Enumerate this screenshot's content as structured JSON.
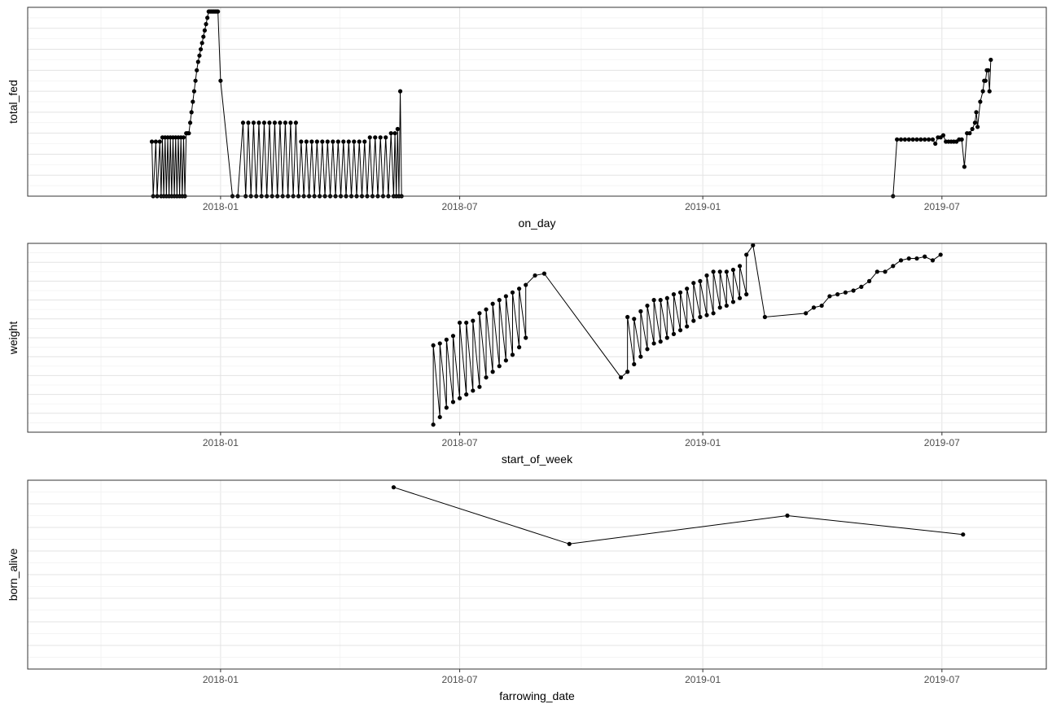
{
  "chart_data": [
    {
      "type": "line",
      "xlabel": "on_day",
      "ylabel": "total_fed",
      "x_ticks": [
        "2018-01-01",
        "2018-07-01",
        "2019-01-01",
        "2019-07-01"
      ],
      "x_tick_labels": [
        "2018-01",
        "2018-07",
        "2019-01",
        "2019-07"
      ],
      "xlim": [
        "2017-08-08",
        "2019-09-18"
      ],
      "ylim": [
        0,
        9
      ],
      "y_tick_labels": [],
      "grid": true,
      "series": [
        {
          "x": [
            "2017-11-10",
            "2017-11-11",
            "2017-11-13",
            "2017-11-14",
            "2017-11-16",
            "2017-11-17",
            "2017-11-18",
            "2017-11-19",
            "2017-11-20",
            "2017-11-21",
            "2017-11-22",
            "2017-11-23",
            "2017-11-24",
            "2017-11-25",
            "2017-11-26",
            "2017-11-27",
            "2017-11-28",
            "2017-11-29",
            "2017-11-30",
            "2017-12-01",
            "2017-12-02",
            "2017-12-03",
            "2017-12-04",
            "2017-12-05",
            "2017-12-06",
            "2017-12-07",
            "2017-12-08",
            "2017-12-09",
            "2017-12-10",
            "2017-12-11",
            "2017-12-12",
            "2017-12-13",
            "2017-12-14",
            "2017-12-15",
            "2017-12-16",
            "2017-12-17",
            "2017-12-18",
            "2017-12-19",
            "2017-12-20",
            "2017-12-21",
            "2017-12-22",
            "2017-12-23",
            "2017-12-24",
            "2017-12-25",
            "2017-12-26",
            "2017-12-27",
            "2017-12-28",
            "2017-12-29",
            "2017-12-30",
            "2018-01-01",
            "2018-01-10",
            "2018-01-14",
            "2018-01-18",
            "2018-01-20",
            "2018-01-22",
            "2018-01-24",
            "2018-01-26",
            "2018-01-28",
            "2018-01-30",
            "2018-02-01",
            "2018-02-03",
            "2018-02-05",
            "2018-02-07",
            "2018-02-09",
            "2018-02-11",
            "2018-02-13",
            "2018-02-15",
            "2018-02-17",
            "2018-02-19",
            "2018-02-21",
            "2018-02-23",
            "2018-02-25",
            "2018-02-27",
            "2018-03-01",
            "2018-03-03",
            "2018-03-05",
            "2018-03-07",
            "2018-03-09",
            "2018-03-11",
            "2018-03-13",
            "2018-03-15",
            "2018-03-17",
            "2018-03-19",
            "2018-03-21",
            "2018-03-23",
            "2018-03-25",
            "2018-03-27",
            "2018-03-29",
            "2018-03-31",
            "2018-04-02",
            "2018-04-04",
            "2018-04-06",
            "2018-04-08",
            "2018-04-10",
            "2018-04-12",
            "2018-04-14",
            "2018-04-16",
            "2018-04-18",
            "2018-04-20",
            "2018-04-22",
            "2018-04-24",
            "2018-04-26",
            "2018-04-28",
            "2018-04-30",
            "2018-05-02",
            "2018-05-04",
            "2018-05-06",
            "2018-05-08",
            "2018-05-10",
            "2018-05-12",
            "2018-05-13",
            "2018-05-14",
            "2018-05-15",
            "2018-05-16",
            "2018-05-17",
            "2018-05-18",
            "2019-05-25",
            "2019-05-28",
            "2019-05-31",
            "2019-06-03",
            "2019-06-06",
            "2019-06-09",
            "2019-06-12",
            "2019-06-15",
            "2019-06-18",
            "2019-06-21",
            "2019-06-24",
            "2019-06-26",
            "2019-06-28",
            "2019-06-30",
            "2019-07-02",
            "2019-07-04",
            "2019-07-06",
            "2019-07-08",
            "2019-07-10",
            "2019-07-12",
            "2019-07-14",
            "2019-07-16",
            "2019-07-18",
            "2019-07-20",
            "2019-07-22",
            "2019-07-24",
            "2019-07-26",
            "2019-07-27",
            "2019-07-28",
            "2019-07-30",
            "2019-08-01",
            "2019-08-02",
            "2019-08-03",
            "2019-08-04",
            "2019-08-05",
            "2019-08-06",
            "2019-08-07"
          ],
          "y": [
            2.6,
            0,
            2.6,
            0,
            2.6,
            0,
            2.8,
            0,
            2.8,
            0,
            2.8,
            0,
            2.8,
            0,
            2.8,
            0,
            2.8,
            0,
            2.8,
            0,
            2.8,
            0,
            2.8,
            0,
            3.0,
            3.0,
            3.0,
            3.5,
            4.0,
            4.5,
            5.0,
            5.5,
            6.0,
            6.4,
            6.7,
            7.0,
            7.3,
            7.6,
            7.9,
            8.2,
            8.5,
            8.8,
            8.8,
            8.8,
            8.8,
            8.8,
            8.8,
            8.8,
            8.8,
            5.5,
            0,
            0,
            3.5,
            0,
            3.5,
            0,
            3.5,
            0,
            3.5,
            0,
            3.5,
            0,
            3.5,
            0,
            3.5,
            0,
            3.5,
            0,
            3.5,
            0,
            3.5,
            0,
            3.5,
            0,
            2.6,
            0,
            2.6,
            0,
            2.6,
            0,
            2.6,
            0,
            2.6,
            0,
            2.6,
            0,
            2.6,
            0,
            2.6,
            0,
            2.6,
            0,
            2.6,
            0,
            2.6,
            0,
            2.6,
            0,
            2.6,
            0,
            2.8,
            0,
            2.8,
            0,
            2.8,
            0,
            2.8,
            0,
            3.0,
            0,
            3.0,
            0,
            3.2,
            0,
            5.0,
            0,
            0,
            2.7,
            2.7,
            2.7,
            2.7,
            2.7,
            2.7,
            2.7,
            2.7,
            2.7,
            2.7,
            2.5,
            2.8,
            2.8,
            2.9,
            2.6,
            2.6,
            2.6,
            2.6,
            2.6,
            2.7,
            2.7,
            1.4,
            3.0,
            3.0,
            3.2,
            3.5,
            4.0,
            3.3,
            4.5,
            5.0,
            5.5,
            5.5,
            6.0,
            6.0,
            5.0,
            6.5
          ]
        }
      ]
    },
    {
      "type": "line",
      "xlabel": "start_of_week",
      "ylabel": "weight",
      "x_ticks": [
        "2018-01-01",
        "2018-07-01",
        "2019-01-01",
        "2019-07-01"
      ],
      "x_tick_labels": [
        "2018-01",
        "2018-07",
        "2019-01",
        "2019-07"
      ],
      "xlim": [
        "2017-08-08",
        "2019-09-18"
      ],
      "ylim": [
        0,
        10
      ],
      "y_tick_labels": [],
      "grid": true,
      "series": [
        {
          "x": [
            "2018-06-11",
            "2018-06-11",
            "2018-06-16",
            "2018-06-16",
            "2018-06-21",
            "2018-06-21",
            "2018-06-26",
            "2018-06-26",
            "2018-07-01",
            "2018-07-01",
            "2018-07-06",
            "2018-07-06",
            "2018-07-11",
            "2018-07-11",
            "2018-07-16",
            "2018-07-16",
            "2018-07-21",
            "2018-07-21",
            "2018-07-26",
            "2018-07-26",
            "2018-07-31",
            "2018-07-31",
            "2018-08-05",
            "2018-08-05",
            "2018-08-10",
            "2018-08-10",
            "2018-08-15",
            "2018-08-15",
            "2018-08-20",
            "2018-08-20",
            "2018-08-27",
            "2018-09-03",
            "2018-10-31",
            "2018-11-05",
            "2018-11-05",
            "2018-11-10",
            "2018-11-10",
            "2018-11-15",
            "2018-11-15",
            "2018-11-20",
            "2018-11-20",
            "2018-11-25",
            "2018-11-25",
            "2018-11-30",
            "2018-11-30",
            "2018-12-05",
            "2018-12-05",
            "2018-12-10",
            "2018-12-10",
            "2018-12-15",
            "2018-12-15",
            "2018-12-20",
            "2018-12-20",
            "2018-12-25",
            "2018-12-25",
            "2018-12-30",
            "2018-12-30",
            "2019-01-04",
            "2019-01-04",
            "2019-01-09",
            "2019-01-09",
            "2019-01-14",
            "2019-01-14",
            "2019-01-19",
            "2019-01-19",
            "2019-01-24",
            "2019-01-24",
            "2019-01-29",
            "2019-01-29",
            "2019-02-03",
            "2019-02-03",
            "2019-02-08",
            "2019-02-17",
            "2019-03-20",
            "2019-03-26",
            "2019-04-01",
            "2019-04-07",
            "2019-04-13",
            "2019-04-19",
            "2019-04-25",
            "2019-05-01",
            "2019-05-07",
            "2019-05-13",
            "2019-05-19",
            "2019-05-25",
            "2019-05-31",
            "2019-06-06",
            "2019-06-12",
            "2019-06-18",
            "2019-06-24",
            "2019-06-30"
          ],
          "y": [
            0.4,
            4.6,
            0.8,
            4.7,
            1.3,
            4.9,
            1.6,
            5.1,
            1.8,
            5.8,
            2.0,
            5.8,
            2.2,
            5.9,
            2.4,
            6.3,
            2.9,
            6.5,
            3.2,
            6.8,
            3.5,
            7.0,
            3.8,
            7.2,
            4.1,
            7.4,
            4.5,
            7.6,
            5.0,
            7.8,
            8.3,
            8.4,
            2.9,
            3.2,
            6.1,
            3.6,
            6.0,
            4.0,
            6.4,
            4.4,
            6.7,
            4.7,
            7.0,
            4.8,
            7.0,
            5.0,
            7.1,
            5.2,
            7.3,
            5.4,
            7.4,
            5.6,
            7.6,
            5.9,
            7.9,
            6.1,
            8.0,
            6.2,
            8.3,
            6.3,
            8.5,
            6.6,
            8.5,
            6.7,
            8.5,
            6.9,
            8.6,
            7.1,
            8.8,
            7.3,
            9.4,
            9.9,
            6.1,
            6.3,
            6.6,
            6.7,
            7.2,
            7.3,
            7.4,
            7.5,
            7.7,
            8.0,
            8.5,
            8.5,
            8.8,
            9.1,
            9.2,
            9.2,
            9.3,
            9.1,
            9.4
          ]
        }
      ]
    },
    {
      "type": "line",
      "xlabel": "farrowing_date",
      "ylabel": "born_alive",
      "x_ticks": [
        "2018-01-01",
        "2018-07-01",
        "2019-01-01",
        "2019-07-01"
      ],
      "x_tick_labels": [
        "2018-01",
        "2018-07",
        "2019-01",
        "2019-07"
      ],
      "xlim": [
        "2017-08-08",
        "2019-09-18"
      ],
      "ylim": [
        0,
        8
      ],
      "y_tick_labels": [],
      "grid": true,
      "series": [
        {
          "x": [
            "2018-05-12",
            "2018-09-22",
            "2019-03-06",
            "2019-07-17"
          ],
          "y": [
            7.7,
            5.3,
            6.5,
            5.7
          ]
        }
      ]
    }
  ]
}
